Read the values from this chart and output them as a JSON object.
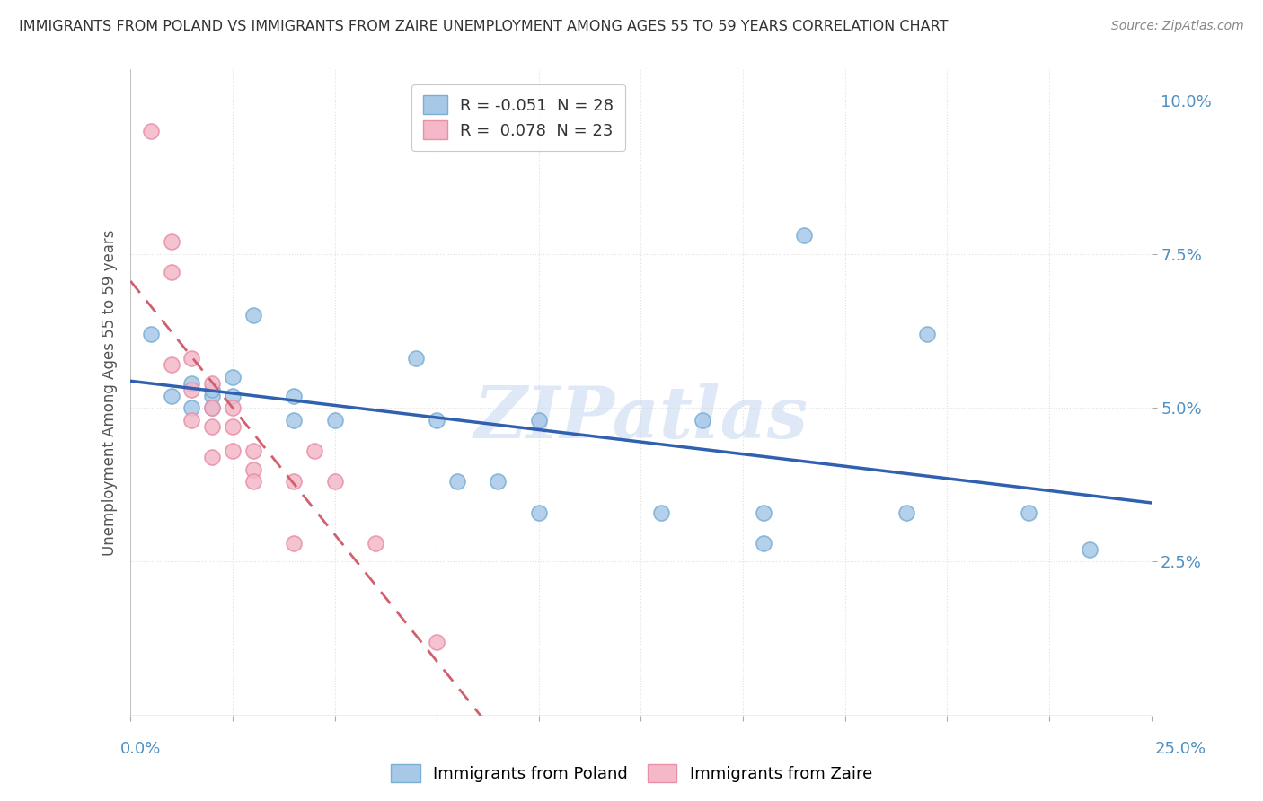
{
  "title": "IMMIGRANTS FROM POLAND VS IMMIGRANTS FROM ZAIRE UNEMPLOYMENT AMONG AGES 55 TO 59 YEARS CORRELATION CHART",
  "source": "Source: ZipAtlas.com",
  "ylabel": "Unemployment Among Ages 55 to 59 years",
  "xlim": [
    0.0,
    0.25
  ],
  "ylim": [
    0.0,
    0.105
  ],
  "yticks": [
    0.025,
    0.05,
    0.075,
    0.1
  ],
  "ytick_labels": [
    "2.5%",
    "5.0%",
    "7.5%",
    "10.0%"
  ],
  "xtick_left_label": "0.0%",
  "xtick_right_label": "25.0%",
  "legend_poland": "R = -0.051  N = 28",
  "legend_zaire": "R =  0.078  N = 23",
  "poland_color": "#a8c8e8",
  "zaire_color": "#f4b8c8",
  "poland_edge_color": "#7aafd4",
  "zaire_edge_color": "#e890a8",
  "poland_line_color": "#3060b0",
  "zaire_line_color": "#d06070",
  "watermark": "ZIPatlas",
  "poland_x": [
    0.005,
    0.01,
    0.015,
    0.015,
    0.02,
    0.02,
    0.02,
    0.025,
    0.025,
    0.03,
    0.04,
    0.04,
    0.05,
    0.07,
    0.075,
    0.08,
    0.09,
    0.1,
    0.13,
    0.14,
    0.155,
    0.165,
    0.19,
    0.195,
    0.22,
    0.235,
    0.1,
    0.155
  ],
  "poland_y": [
    0.062,
    0.052,
    0.054,
    0.05,
    0.052,
    0.05,
    0.053,
    0.055,
    0.052,
    0.065,
    0.052,
    0.048,
    0.048,
    0.058,
    0.048,
    0.038,
    0.038,
    0.048,
    0.033,
    0.048,
    0.033,
    0.078,
    0.033,
    0.062,
    0.033,
    0.027,
    0.033,
    0.028
  ],
  "zaire_x": [
    0.005,
    0.01,
    0.01,
    0.01,
    0.015,
    0.015,
    0.015,
    0.02,
    0.02,
    0.02,
    0.02,
    0.025,
    0.025,
    0.025,
    0.03,
    0.03,
    0.03,
    0.04,
    0.04,
    0.045,
    0.05,
    0.06,
    0.075
  ],
  "zaire_y": [
    0.095,
    0.077,
    0.072,
    0.057,
    0.058,
    0.053,
    0.048,
    0.054,
    0.05,
    0.047,
    0.042,
    0.05,
    0.047,
    0.043,
    0.043,
    0.04,
    0.038,
    0.038,
    0.028,
    0.043,
    0.038,
    0.028,
    0.012
  ],
  "background_color": "#ffffff",
  "grid_color": "#e0e0e0"
}
